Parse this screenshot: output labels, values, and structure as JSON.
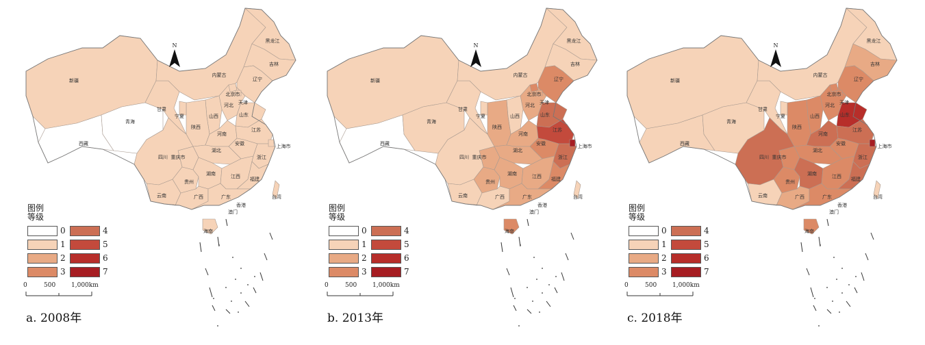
{
  "colors": {
    "0": "#ffffff",
    "1": "#f6d3b8",
    "2": "#e8aa85",
    "3": "#dc8a66",
    "4": "#cc6f54",
    "5": "#c34a3c",
    "6": "#b72e2a",
    "7": "#a61d22"
  },
  "legend": {
    "title_line1": "图例",
    "title_line2": "等级",
    "levels": [
      "0",
      "1",
      "2",
      "3",
      "4",
      "5",
      "6",
      "7"
    ]
  },
  "scale": {
    "t0": "0",
    "t1": "500",
    "t2": "1,000km"
  },
  "north": "N",
  "province_labels": {
    "xj": "新疆",
    "xz": "西藏",
    "qh": "青海",
    "gs": "甘肃",
    "nx": "宁夏",
    "sc": "四川",
    "cq": "重庆市",
    "yn": "云南",
    "gz": "贵州",
    "gx": "广西",
    "gd": "广东",
    "hn": "海南",
    "hun": "湖南",
    "hub": "湖北",
    "jx": "江西",
    "fj": "福建",
    "zj": "浙江",
    "sh": "上海市",
    "js": "江苏",
    "ah": "安徽",
    "sd": "山东",
    "hen": "河南",
    "sx": "山西",
    "shx": "陕西",
    "heb": "河北",
    "bj": "北京市",
    "tj": "天津",
    "ln": "辽宁",
    "jl": "吉林",
    "hlj": "黑龙江",
    "nm": "内蒙古",
    "tw": "台湾",
    "hk": "香港",
    "mo": "澳门"
  },
  "panels": [
    {
      "caption": "a. 2008年",
      "levels": {
        "xj": 1,
        "xz": 0,
        "qh": 0,
        "gs": 1,
        "nx": 1,
        "sc": 1,
        "cq": 1,
        "yn": 1,
        "gz": 1,
        "gx": 1,
        "gd": 1,
        "hn": 1,
        "hun": 1,
        "hub": 1,
        "jx": 1,
        "fj": 1,
        "zj": 1,
        "sh": 1,
        "js": 1,
        "ah": 1,
        "sd": 1,
        "hen": 1,
        "sx": 1,
        "shx": 1,
        "heb": 1,
        "bj": 1,
        "tj": 1,
        "ln": 1,
        "jl": 1,
        "hlj": 1,
        "nm": 1,
        "tw": 1
      }
    },
    {
      "caption": "b. 2013年",
      "levels": {
        "xj": 1,
        "xz": 0,
        "qh": 1,
        "gs": 1,
        "nx": 1,
        "sc": 1,
        "cq": 2,
        "yn": 1,
        "gz": 2,
        "gx": 1,
        "gd": 2,
        "hn": 3,
        "hun": 2,
        "hub": 2,
        "jx": 2,
        "fj": 3,
        "zj": 4,
        "sh": 7,
        "js": 5,
        "ah": 3,
        "sd": 4,
        "hen": 2,
        "sx": 1,
        "shx": 2,
        "heb": 2,
        "bj": 3,
        "tj": 2,
        "ln": 3,
        "jl": 1,
        "hlj": 1,
        "nm": 1,
        "tw": 1
      }
    },
    {
      "caption": "c. 2018年",
      "levels": {
        "xj": 1,
        "xz": 1,
        "qh": 1,
        "gs": 1,
        "nx": 1,
        "sc": 4,
        "cq": 3,
        "yn": 1,
        "gz": 3,
        "gx": 2,
        "gd": 3,
        "hn": 3,
        "hun": 4,
        "hub": 3,
        "jx": 3,
        "fj": 4,
        "zj": 4,
        "sh": 7,
        "js": 4,
        "ah": 3,
        "sd": 6,
        "hen": 4,
        "sx": 3,
        "shx": 3,
        "heb": 3,
        "bj": 3,
        "tj": 3,
        "ln": 3,
        "jl": 2,
        "hlj": 1,
        "nm": 1,
        "tw": 1
      }
    }
  ]
}
